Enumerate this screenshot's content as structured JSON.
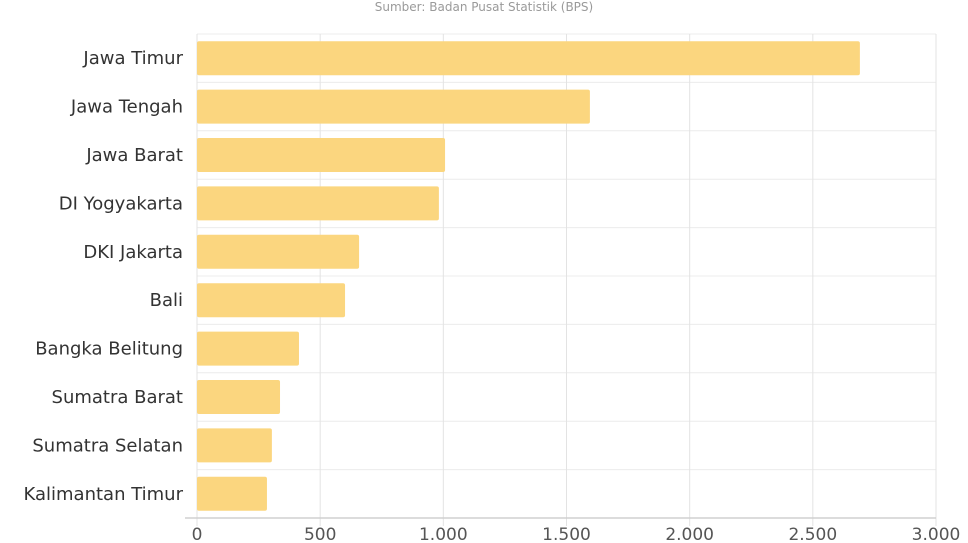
{
  "chart_data": {
    "type": "bar",
    "orientation": "horizontal",
    "source": "Sumber: Badan Pusat Statistik (BPS)",
    "categories": [
      "Jawa Timur",
      "Jawa Tengah",
      "Jawa Barat",
      "DI Yogyakarta",
      "DKI Jakarta",
      "Bali",
      "Bangka Belitung",
      "Sumatra Barat",
      "Sumatra Selatan",
      "Kalimantan Timur"
    ],
    "values": [
      2691,
      1595,
      1007,
      982,
      658,
      601,
      414,
      337,
      304,
      284
    ],
    "xlim": [
      0,
      3000
    ],
    "xticks": [
      0,
      500,
      1000,
      1500,
      2000,
      2500,
      3000
    ],
    "xtick_labels": [
      "0",
      "500",
      "1.000",
      "1.500",
      "2.000",
      "2.500",
      "3.000"
    ],
    "grid": true,
    "bar_color": "#fbd67f"
  }
}
